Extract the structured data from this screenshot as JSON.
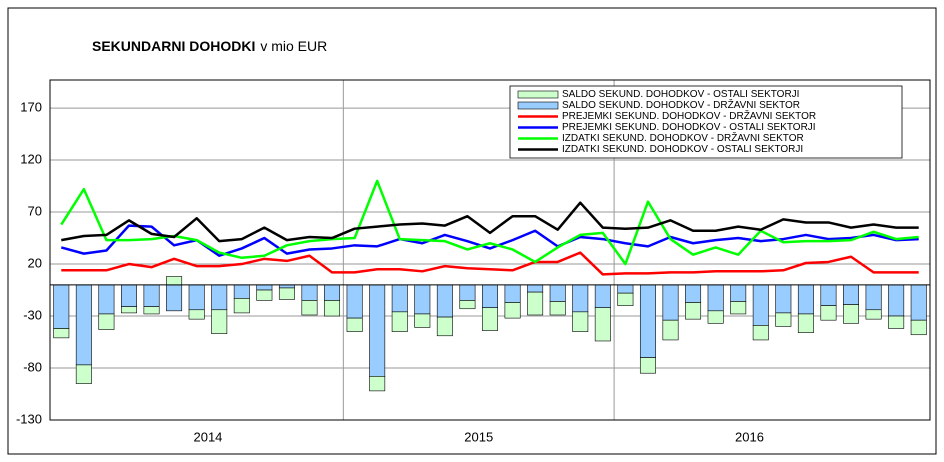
{
  "chart_data": {
    "type": "combo",
    "title": "SEKUNDARNI  DOHODKI",
    "title_unit": "v mio EUR",
    "categories": [
      null,
      "2014",
      null,
      null,
      null,
      null,
      null,
      null,
      null,
      null,
      null,
      null,
      null,
      "2015",
      null,
      null,
      null,
      null,
      null,
      null,
      null,
      null,
      null,
      null,
      null,
      "2016",
      null,
      null,
      null,
      null,
      null,
      null,
      null,
      null,
      null,
      null,
      null,
      null,
      null
    ],
    "ylim": [
      -130,
      197
    ],
    "yticks": [
      -130,
      -80,
      -30,
      20,
      70,
      120,
      170
    ],
    "grid": true,
    "legend": "upper right",
    "series": [
      {
        "name": "SALDO SEKUND. DOHODKOV - OSTALI SEKTORJI",
        "type": "bar",
        "color": "#ccffcc",
        "values": [
          -9,
          -18,
          -15,
          -6,
          -7,
          8,
          -9,
          -23,
          -14,
          -10,
          -11,
          -14,
          -15,
          -13,
          -14,
          -19,
          -13,
          -18,
          -8,
          -22,
          -15,
          -22,
          -13,
          -19,
          -32,
          -12,
          -15,
          -19,
          -16,
          -12,
          -12,
          -14,
          -13,
          -18,
          -14,
          -18,
          -9,
          -12,
          -14
        ]
      },
      {
        "name": "SALDO SEKUND. DOHODKOV - DRŽAVNI SEKTOR",
        "type": "bar",
        "color": "#99ccff",
        "values": [
          -42,
          -77,
          -28,
          -21,
          -21,
          -25,
          -24,
          -24,
          -13,
          -5,
          -3,
          -15,
          -15,
          -32,
          -88,
          -26,
          -28,
          -31,
          -15,
          -22,
          -17,
          -7,
          -16,
          -26,
          -22,
          -8,
          -70,
          -34,
          -17,
          -25,
          -16,
          -39,
          -27,
          -28,
          -20,
          -19,
          -24,
          -30,
          -34
        ]
      },
      {
        "name": "PREJEMKI SEKUND. DOHODKOV - DRŽAVNI SEKTOR",
        "type": "line",
        "color": "#ff0000",
        "values": [
          14,
          14,
          14,
          20,
          17,
          25,
          18,
          18,
          20,
          25,
          23,
          28,
          12,
          12,
          15,
          15,
          13,
          18,
          16,
          15,
          14,
          22,
          22,
          31,
          10,
          11,
          11,
          12,
          12,
          13,
          13,
          13,
          14,
          21,
          22,
          27,
          12,
          12,
          12
        ]
      },
      {
        "name": "PREJEMKI SEKUND. DOHODKOV - OSTALI SEKTORJI",
        "type": "line",
        "color": "#0000ff",
        "values": [
          36,
          30,
          33,
          57,
          56,
          38,
          43,
          28,
          35,
          45,
          30,
          34,
          35,
          38,
          37,
          44,
          40,
          48,
          42,
          35,
          43,
          52,
          37,
          46,
          44,
          40,
          37,
          46,
          40,
          43,
          45,
          42,
          44,
          48,
          44,
          45,
          48,
          43,
          44
        ]
      },
      {
        "name": "IZDATKI SEKUND. DOHODKOV - DRŽAVNI SEKTOR",
        "type": "line",
        "color": "#00ff00",
        "values": [
          58,
          92,
          43,
          43,
          44,
          47,
          43,
          31,
          26,
          28,
          38,
          42,
          44,
          45,
          100,
          44,
          43,
          42,
          34,
          40,
          34,
          22,
          36,
          48,
          50,
          20,
          80,
          44,
          29,
          36,
          29,
          52,
          41,
          42,
          42,
          43,
          51,
          44,
          46
        ]
      },
      {
        "name": "IZDATKI SEKUND. DOHODKOV - OSTALI SEKTORJI",
        "type": "line",
        "color": "#000000",
        "values": [
          43,
          47,
          48,
          62,
          49,
          46,
          64,
          42,
          44,
          55,
          43,
          46,
          45,
          54,
          56,
          58,
          59,
          57,
          66,
          50,
          66,
          66,
          53,
          79,
          55,
          54,
          55,
          62,
          52,
          52,
          56,
          53,
          63,
          60,
          60,
          55,
          58,
          55,
          55
        ]
      }
    ]
  }
}
